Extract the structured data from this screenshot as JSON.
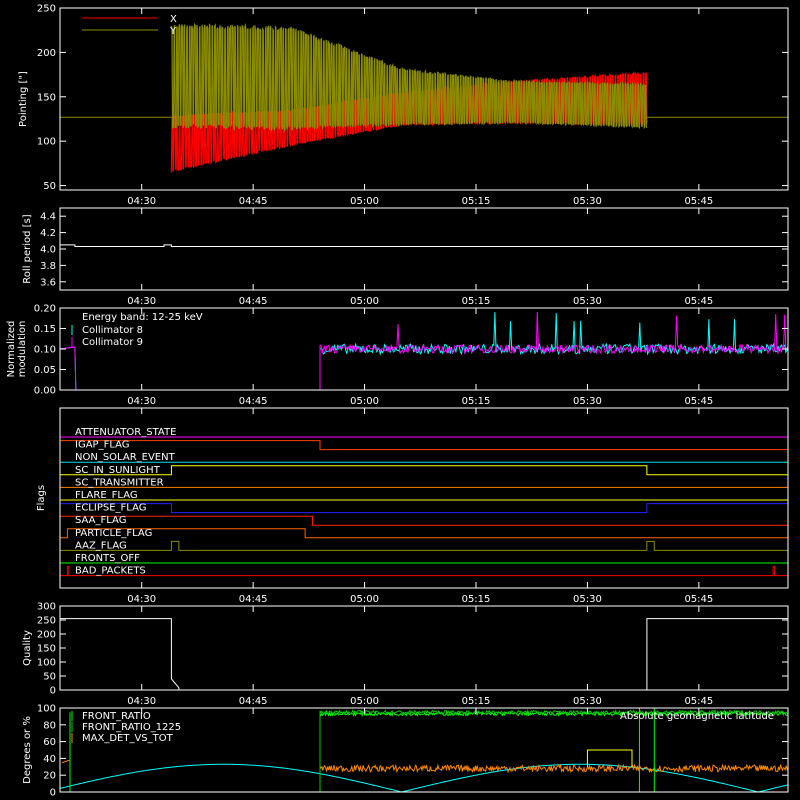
{
  "chart_data": [
    {
      "type": "line",
      "ylabel": "Pointing [\"]",
      "ylim": [
        45,
        250
      ],
      "yticks": [
        50,
        100,
        150,
        200,
        250
      ],
      "xticks": [
        "04:30",
        "04:45",
        "05:00",
        "05:15",
        "05:30",
        "05:45"
      ],
      "x_range": [
        "04:19",
        "05:57"
      ],
      "legend_placement": "top-left",
      "series": [
        {
          "name": "X",
          "color": "#ff0000",
          "baseline": 127,
          "start": "04:34",
          "end": "05:38",
          "envelope": [
            {
              "t": "04:34",
              "lo": 65,
              "hi": 130
            },
            {
              "t": "04:50",
              "lo": 95,
              "hi": 135
            },
            {
              "t": "05:05",
              "lo": 118,
              "hi": 155
            },
            {
              "t": "05:20",
              "lo": 120,
              "hi": 168
            },
            {
              "t": "05:38",
              "lo": 118,
              "hi": 178
            }
          ]
        },
        {
          "name": "Y",
          "color": "#8c8c00",
          "baseline": 127,
          "start": "04:34",
          "end": "05:38",
          "envelope": [
            {
              "t": "04:34",
              "lo": 115,
              "hi": 232
            },
            {
              "t": "04:50",
              "lo": 112,
              "hi": 230
            },
            {
              "t": "05:05",
              "lo": 118,
              "hi": 182
            },
            {
              "t": "05:20",
              "lo": 120,
              "hi": 168
            },
            {
              "t": "05:38",
              "lo": 115,
              "hi": 165
            }
          ]
        }
      ]
    },
    {
      "type": "line",
      "ylabel": "Roll period [s]",
      "ylim": [
        3.5,
        4.5
      ],
      "yticks": [
        3.6,
        3.8,
        4.0,
        4.2,
        4.4
      ],
      "ytick_labels": [
        "3.6",
        "3.8",
        "4.0",
        "4.2",
        "4.4"
      ],
      "xticks": [
        "04:30",
        "04:45",
        "05:00",
        "05:15",
        "05:30",
        "05:45"
      ],
      "series": [
        {
          "name": "",
          "color": "#ffffff",
          "points": [
            {
              "t": "04:19",
              "y": 4.05
            },
            {
              "t": "04:21",
              "y": 4.05
            },
            {
              "t": "04:21",
              "y": 4.03
            },
            {
              "t": "04:33",
              "y": 4.03
            },
            {
              "t": "04:33",
              "y": 4.05
            },
            {
              "t": "04:34",
              "y": 4.05
            },
            {
              "t": "04:34",
              "y": 4.03
            },
            {
              "t": "05:57",
              "y": 4.03
            }
          ]
        }
      ]
    },
    {
      "type": "line",
      "ylabel": "Normalized modulation",
      "ylabel_lines": [
        "Normalized",
        "modulation"
      ],
      "ylim": [
        0.0,
        0.2
      ],
      "yticks": [
        0.0,
        0.05,
        0.1,
        0.15,
        0.2
      ],
      "ytick_labels": [
        "0.00",
        "0.05",
        "0.10",
        "0.15",
        "0.20"
      ],
      "xticks": [
        "04:30",
        "04:45",
        "05:00",
        "05:15",
        "05:30",
        "05:45"
      ],
      "annotation": "Energy band: 12-25 keV",
      "series": [
        {
          "name": "Collimator 8",
          "color": "#00ffff",
          "start": "04:54",
          "end": "05:57",
          "level": 0.1,
          "spread": 0.012,
          "pre_level": 0.1,
          "pre_end": "04:21"
        },
        {
          "name": "Collimator 9",
          "color": "#ff00ff",
          "start": "04:54",
          "end": "05:57",
          "level": 0.1,
          "spread": 0.01,
          "pre_level": 0.1,
          "pre_end": "04:21"
        }
      ]
    },
    {
      "type": "line",
      "ylabel": "Flags",
      "xticks": [
        "04:30",
        "04:45",
        "05:00",
        "05:15",
        "05:30",
        "05:45"
      ],
      "flags": [
        {
          "name": "ATTENUATOR_STATE",
          "color": "#ff00ff",
          "highs": []
        },
        {
          "name": "IGAP_FLAG",
          "color": "#ff4400",
          "highs": [
            [
              "04:19",
              "04:54"
            ]
          ]
        },
        {
          "name": "NON_SOLAR_EVENT",
          "color": "#00e0e0",
          "highs": []
        },
        {
          "name": "SC_IN_SUNLIGHT",
          "color": "#ffff00",
          "highs": [
            [
              "04:34",
              "05:38"
            ]
          ]
        },
        {
          "name": "SC_TRANSMITTER",
          "color": "#ff7f00",
          "highs": []
        },
        {
          "name": "FLARE_FLAG",
          "color": "#ffff00",
          "highs": []
        },
        {
          "name": "ECLIPSE_FLAG",
          "color": "#2222ff",
          "highs": [
            [
              "04:19",
              "04:34"
            ],
            [
              "05:38",
              "05:57"
            ]
          ]
        },
        {
          "name": "SAA_FLAG",
          "color": "#ff2200",
          "highs": [
            [
              "04:19",
              "04:53"
            ]
          ]
        },
        {
          "name": "PARTICLE_FLAG",
          "color": "#ff6600",
          "highs": [
            [
              "04:20",
              "04:52"
            ]
          ]
        },
        {
          "name": "AAZ_FLAG",
          "color": "#8c8c00",
          "highs": [
            [
              "04:34",
              "04:35"
            ],
            [
              "05:38",
              "05:39"
            ]
          ]
        },
        {
          "name": "FRONTS_OFF",
          "color": "#00ff00",
          "highs": []
        },
        {
          "name": "BAD_PACKETS",
          "color": "#ff0000",
          "highs": [
            [
              "04:20",
              "04:20"
            ],
            [
              "05:55",
              "05:55"
            ]
          ]
        }
      ]
    },
    {
      "type": "line",
      "ylabel": "Quality",
      "ylim": [
        0,
        300
      ],
      "yticks": [
        0,
        50,
        100,
        150,
        200,
        250,
        300
      ],
      "xticks": [
        "04:30",
        "04:45",
        "05:00",
        "05:15",
        "05:30",
        "05:45"
      ],
      "series": [
        {
          "name": "",
          "color": "#ffffff",
          "points": [
            {
              "t": "04:19",
              "y": 255
            },
            {
              "t": "04:34",
              "y": 255
            },
            {
              "t": "04:34",
              "y": 100
            },
            {
              "t": "04:34",
              "y": 40
            },
            {
              "t": "04:35",
              "y": 8
            },
            {
              "t": "04:35",
              "y": 0
            },
            {
              "t": "05:38",
              "y": 0
            },
            {
              "t": "05:38",
              "y": 255
            },
            {
              "t": "05:57",
              "y": 255
            }
          ]
        }
      ]
    },
    {
      "type": "line",
      "ylabel": "Degrees or %",
      "ylim": [
        0,
        100
      ],
      "yticks": [
        0,
        20,
        40,
        60,
        80,
        100
      ],
      "xticks": [
        "04:30",
        "04:45",
        "05:00",
        "05:15",
        "05:30",
        "05:45"
      ],
      "annotation_right": "Absolute geomagnetic latitude",
      "series": [
        {
          "name": "FRONT_RATIO",
          "color": "#00ff00",
          "level": 93,
          "start": "04:54",
          "end": "05:57"
        },
        {
          "name": "FRONT_RATIO_1225",
          "color": "#00cc00",
          "level": 95,
          "start": "04:54",
          "end": "05:57"
        },
        {
          "name": "MAX_DET_VS_TOT",
          "color": "#ff8800",
          "level": 28,
          "start": "04:54",
          "end": "05:57"
        },
        {
          "name": "latitude",
          "color": "#00ffff",
          "curve": "abs-sine",
          "amplitude": 33,
          "period_min": 48,
          "zero": "04:17"
        },
        {
          "name": "",
          "color": "#ffff00",
          "level": 50,
          "start": "05:30",
          "end": "05:36"
        }
      ]
    }
  ]
}
